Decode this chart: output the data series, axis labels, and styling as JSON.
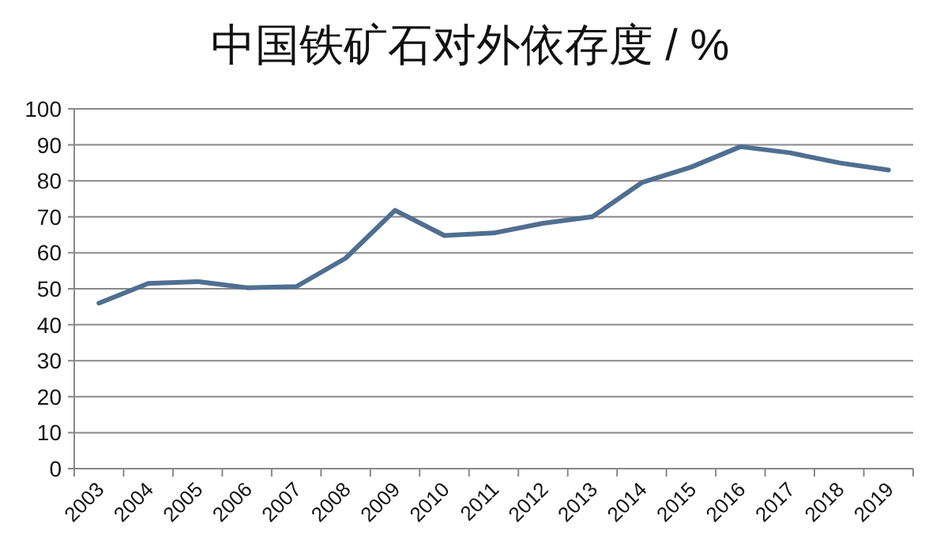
{
  "chart_data": {
    "type": "line",
    "title": "中国铁矿石对外依存度 / %",
    "categories": [
      "2003",
      "2004",
      "2005",
      "2006",
      "2007",
      "2008",
      "2009",
      "2010",
      "2011",
      "2012",
      "2013",
      "2014",
      "2015",
      "2016",
      "2017",
      "2018",
      "2019"
    ],
    "series": [
      {
        "color": "#4f6f91",
        "values": [
          46,
          51.5,
          52,
          50.3,
          50.6,
          58.5,
          71.8,
          64.8,
          65.5,
          68.2,
          70,
          79.5,
          83.8,
          89.5,
          87.8,
          85,
          83
        ]
      }
    ],
    "ylim": [
      0,
      100
    ],
    "yticks": [
      0,
      10,
      20,
      30,
      40,
      50,
      60,
      70,
      80,
      90,
      100
    ],
    "grid": "y",
    "marker": "none",
    "line_style": "solid"
  }
}
